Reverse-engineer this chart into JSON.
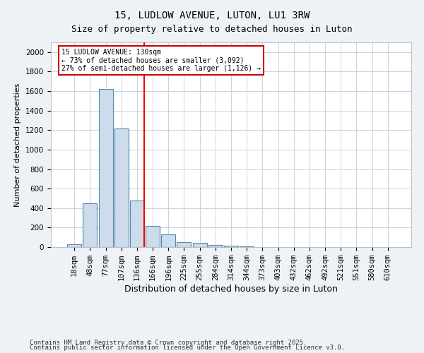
{
  "title1": "15, LUDLOW AVENUE, LUTON, LU1 3RW",
  "title2": "Size of property relative to detached houses in Luton",
  "xlabel": "Distribution of detached houses by size in Luton",
  "ylabel": "Number of detached properties",
  "categories": [
    "18sqm",
    "48sqm",
    "77sqm",
    "107sqm",
    "136sqm",
    "166sqm",
    "196sqm",
    "225sqm",
    "255sqm",
    "284sqm",
    "314sqm",
    "344sqm",
    "373sqm",
    "403sqm",
    "432sqm",
    "462sqm",
    "492sqm",
    "521sqm",
    "551sqm",
    "580sqm",
    "610sqm"
  ],
  "values": [
    30,
    450,
    1620,
    1220,
    480,
    220,
    130,
    50,
    40,
    25,
    15,
    10,
    0,
    0,
    0,
    0,
    0,
    0,
    0,
    0,
    0
  ],
  "bar_color": "#ccdcec",
  "bar_edge_color": "#5588aa",
  "red_line_x": 4.45,
  "annotation_line1": "15 LUDLOW AVENUE: 130sqm",
  "annotation_line2": "← 73% of detached houses are smaller (3,092)",
  "annotation_line3": "27% of semi-detached houses are larger (1,126) →",
  "annotation_box_color": "#ffffff",
  "annotation_border_color": "#cc0000",
  "ylim": [
    0,
    2100
  ],
  "yticks": [
    0,
    200,
    400,
    600,
    800,
    1000,
    1200,
    1400,
    1600,
    1800,
    2000
  ],
  "footer1": "Contains HM Land Registry data © Crown copyright and database right 2025.",
  "footer2": "Contains public sector information licensed under the Open Government Licence v3.0.",
  "bg_color": "#eef2f7",
  "plot_bg_color": "#ffffff",
  "grid_color": "#c8d4e0",
  "title1_fontsize": 10,
  "title2_fontsize": 9,
  "xlabel_fontsize": 9,
  "ylabel_fontsize": 8,
  "tick_fontsize": 7.5,
  "footer_fontsize": 6.5
}
